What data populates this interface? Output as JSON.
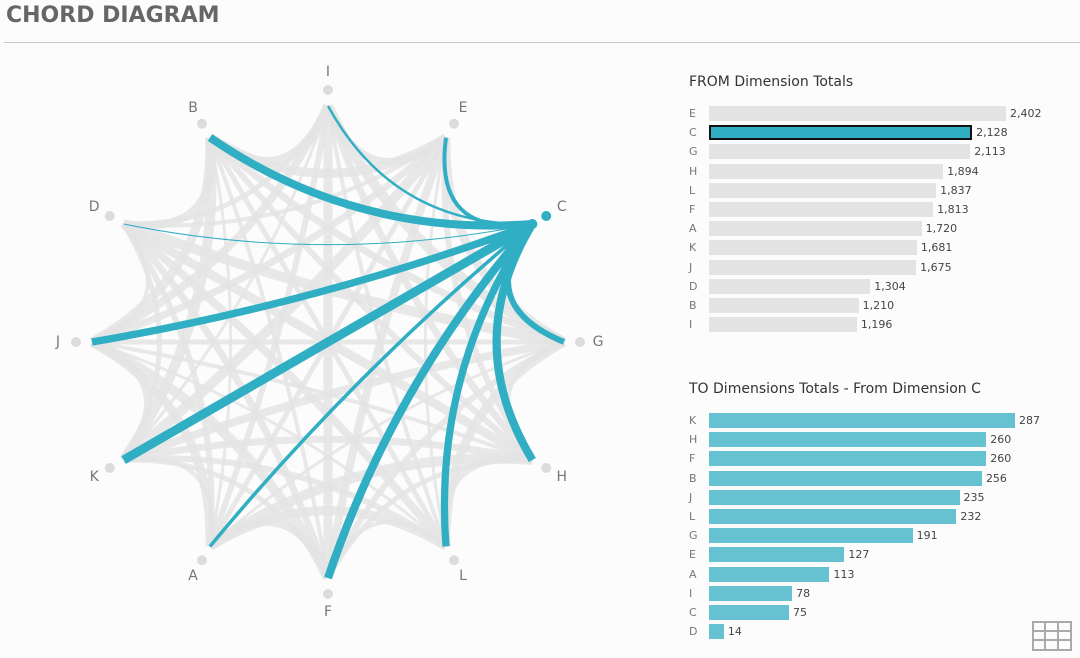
{
  "title": "CHORD DIAGRAM",
  "colors": {
    "accent": "#30aec3",
    "to_bar": "#66c2d0",
    "inactive": "#e3e3e3",
    "node": "#dcdcdc"
  },
  "chart_data": [
    {
      "type": "chord",
      "nodes": [
        "I",
        "E",
        "C",
        "G",
        "H",
        "L",
        "F",
        "A",
        "K",
        "J",
        "D",
        "B"
      ],
      "selected": "C",
      "selected_links": {
        "K": 287,
        "H": 260,
        "F": 260,
        "B": 256,
        "J": 235,
        "L": 232,
        "G": 191,
        "E": 127,
        "A": 113,
        "I": 78,
        "C": 75,
        "D": 14
      }
    },
    {
      "type": "bar",
      "title": "FROM Dimension Totals",
      "categories": [
        "E",
        "C",
        "G",
        "H",
        "L",
        "F",
        "A",
        "K",
        "J",
        "D",
        "B",
        "I"
      ],
      "values": [
        2402,
        2128,
        2113,
        1894,
        1837,
        1813,
        1720,
        1681,
        1675,
        1304,
        1210,
        1196
      ],
      "labels": [
        "2,402",
        "2,128",
        "2,113",
        "1,894",
        "1,837",
        "1,813",
        "1,720",
        "1,681",
        "1,675",
        "1,304",
        "1,210",
        "1,196"
      ],
      "selected": "C"
    },
    {
      "type": "bar",
      "title": "TO Dimensions Totals - From Dimension C",
      "categories": [
        "K",
        "H",
        "F",
        "B",
        "J",
        "L",
        "G",
        "E",
        "A",
        "I",
        "C",
        "D"
      ],
      "values": [
        287,
        260,
        260,
        256,
        235,
        232,
        191,
        127,
        113,
        78,
        75,
        14
      ],
      "labels": [
        "287",
        "260",
        "260",
        "256",
        "235",
        "232",
        "191",
        "127",
        "113",
        "78",
        "75",
        "14"
      ]
    }
  ]
}
